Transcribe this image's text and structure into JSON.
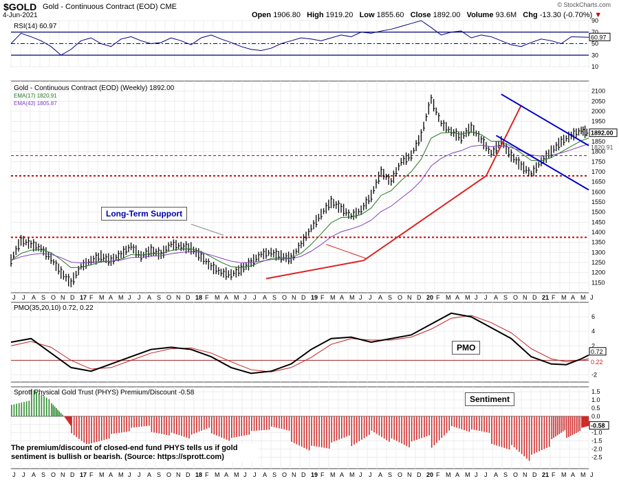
{
  "header": {
    "symbol": "$GOLD",
    "name": "Gold - Continuous Contract (EOD)",
    "exchange": "CME",
    "date": "4-Jun-2021",
    "credit": "© StockCharts.com",
    "open_label": "Open",
    "open": "1906.80",
    "high_label": "High",
    "high": "1919.20",
    "low_label": "Low",
    "low": "1855.60",
    "close_label": "Close",
    "close": "1892.00",
    "volume_label": "Volume",
    "volume": "93.6M",
    "chg_label": "Chg",
    "chg": "-13.30 (-0.70%)",
    "chg_arrow": "▼"
  },
  "colors": {
    "accent_red": "#cc0000",
    "blue": "#0000cc",
    "green": "#227722",
    "purple": "#8040c0",
    "rsi": "#000080"
  },
  "chart_data": [
    {
      "type": "line",
      "title": "RSI(14) 60.97",
      "yticks": [
        "90",
        "70",
        "50",
        "30",
        "10"
      ],
      "levels": [
        70,
        30
      ],
      "current": "60.97",
      "ylim": [
        10,
        90
      ],
      "x": [
        0,
        4,
        8,
        12,
        16,
        20,
        24,
        28,
        32,
        36,
        40,
        44,
        48,
        52,
        56,
        60,
        64,
        68,
        72,
        76,
        80,
        84,
        88,
        92,
        96,
        100,
        104,
        108,
        112,
        116,
        120,
        124,
        128,
        132,
        136,
        140,
        144,
        148,
        152,
        156,
        160,
        164,
        168,
        172,
        176,
        180,
        184,
        188,
        192,
        196,
        200,
        204,
        208,
        212,
        216,
        220,
        224,
        231
      ],
      "values": [
        50,
        68,
        62,
        55,
        45,
        30,
        40,
        55,
        60,
        50,
        45,
        58,
        62,
        55,
        50,
        52,
        60,
        55,
        48,
        60,
        65,
        58,
        52,
        45,
        40,
        38,
        42,
        50,
        55,
        60,
        58,
        55,
        60,
        65,
        62,
        70,
        68,
        72,
        75,
        80,
        85,
        90,
        78,
        65,
        70,
        72,
        60,
        65,
        62,
        55,
        48,
        45,
        52,
        58,
        55,
        50,
        62,
        61
      ]
    },
    {
      "type": "line",
      "title": "Gold - Continuous Contract (EOD) (Weekly) 1892.00",
      "ylim": [
        1100,
        2150
      ],
      "yticks": [
        "2100",
        "2050",
        "2000",
        "1950",
        "1900",
        "1850",
        "1800",
        "1750",
        "1700",
        "1650",
        "1600",
        "1550",
        "1500",
        "1450",
        "1400",
        "1350",
        "1300",
        "1250",
        "1200",
        "1150"
      ],
      "x_month_labels": [
        "J",
        "J",
        "A",
        "S",
        "O",
        "N",
        "D",
        "17",
        "F",
        "M",
        "A",
        "M",
        "J",
        "J",
        "A",
        "S",
        "O",
        "N",
        "D",
        "18",
        "F",
        "M",
        "A",
        "M",
        "J",
        "J",
        "A",
        "S",
        "O",
        "N",
        "D",
        "19",
        "F",
        "M",
        "A",
        "M",
        "J",
        "J",
        "A",
        "S",
        "O",
        "N",
        "D",
        "20",
        "F",
        "M",
        "A",
        "M",
        "J",
        "J",
        "A",
        "S",
        "O",
        "N",
        "D",
        "21",
        "F",
        "M",
        "A",
        "M",
        "J"
      ],
      "x": [
        0,
        4,
        8,
        12,
        16,
        20,
        24,
        28,
        32,
        36,
        40,
        44,
        48,
        52,
        56,
        60,
        64,
        68,
        72,
        76,
        80,
        84,
        88,
        92,
        96,
        100,
        104,
        108,
        112,
        116,
        120,
        124,
        128,
        132,
        136,
        140,
        144,
        148,
        152,
        156,
        160,
        164,
        168,
        172,
        176,
        180,
        184,
        188,
        192,
        196,
        200,
        204,
        208,
        212,
        216,
        220,
        224,
        228,
        231
      ],
      "values": [
        1260,
        1360,
        1340,
        1320,
        1270,
        1200,
        1150,
        1230,
        1260,
        1280,
        1260,
        1290,
        1330,
        1280,
        1310,
        1290,
        1340,
        1330,
        1320,
        1280,
        1230,
        1200,
        1190,
        1215,
        1250,
        1290,
        1300,
        1280,
        1270,
        1340,
        1420,
        1490,
        1550,
        1520,
        1480,
        1510,
        1580,
        1700,
        1650,
        1750,
        1780,
        1880,
        2060,
        1940,
        1900,
        1870,
        1920,
        1860,
        1790,
        1850,
        1780,
        1730,
        1690,
        1750,
        1800,
        1850,
        1880,
        1905,
        1892
      ],
      "series": [
        {
          "name": "EMA(17) 1820.91",
          "color": "#227722",
          "label": "1820.91"
        },
        {
          "name": "EMA(43) 1805.87",
          "color": "#8040c0",
          "label": "1805.87"
        }
      ],
      "last_price_label": "1892.00",
      "support_levels": [
        1780,
        1680,
        1375
      ],
      "annotations": [
        "Long-Term Support"
      ]
    },
    {
      "type": "line",
      "title": "PMO(35,20,10) 0.72, 0.22",
      "ylim": [
        -3,
        8
      ],
      "yticks": [
        "6",
        "4",
        "2",
        "-2"
      ],
      "series": [
        {
          "name": "PMO",
          "color": "#000000",
          "label": "0.72",
          "x": [
            0,
            8,
            16,
            24,
            32,
            40,
            48,
            56,
            64,
            72,
            80,
            88,
            96,
            104,
            112,
            120,
            128,
            136,
            144,
            152,
            160,
            168,
            176,
            184,
            192,
            200,
            208,
            216,
            222,
            228,
            231
          ],
          "values": [
            2.5,
            3.0,
            1.0,
            -1.0,
            -1.5,
            -0.5,
            0.5,
            1.5,
            1.8,
            1.5,
            0.5,
            -1.0,
            -1.8,
            -1.5,
            -0.5,
            1.5,
            3.0,
            3.2,
            2.5,
            3.0,
            3.5,
            5.0,
            6.5,
            6.0,
            4.5,
            3.0,
            0.5,
            -0.5,
            -0.6,
            0.2,
            0.72
          ]
        },
        {
          "name": "Signal",
          "color": "#c02020",
          "label": "0.22",
          "x": [
            0,
            8,
            16,
            24,
            32,
            40,
            48,
            56,
            64,
            72,
            80,
            88,
            96,
            104,
            112,
            120,
            128,
            136,
            144,
            152,
            160,
            168,
            176,
            184,
            192,
            200,
            208,
            216,
            222,
            228,
            231
          ],
          "values": [
            2.0,
            2.6,
            1.8,
            0.0,
            -1.2,
            -1.0,
            0.0,
            1.0,
            1.6,
            1.7,
            1.0,
            -0.2,
            -1.3,
            -1.6,
            -1.0,
            0.4,
            2.2,
            3.0,
            2.8,
            2.8,
            3.2,
            4.3,
            5.8,
            6.2,
            5.2,
            3.8,
            1.6,
            0.2,
            -0.2,
            0.0,
            0.22
          ]
        }
      ],
      "annotations": [
        "PMO"
      ]
    },
    {
      "type": "bar",
      "title": "Sprott Physical Gold Trust (PHYS) Premium/Discount -0.58",
      "ylim": [
        -3.2,
        1.8
      ],
      "yticks": [
        "1.5",
        "1.0",
        "0.5",
        "0.0",
        "-0.5",
        "-1.0",
        "-1.5",
        "-2.0",
        "-2.5"
      ],
      "current": "-0.58",
      "x": [
        0,
        8,
        16,
        21,
        24,
        32,
        40,
        48,
        56,
        64,
        72,
        80,
        88,
        96,
        104,
        112,
        120,
        128,
        136,
        144,
        152,
        160,
        168,
        176,
        184,
        192,
        200,
        208,
        216,
        222,
        228,
        231
      ],
      "values": [
        1.0,
        1.4,
        0.8,
        0.0,
        -0.8,
        -1.5,
        -1.2,
        -1.0,
        -0.8,
        -1.0,
        -1.4,
        -0.8,
        -1.2,
        -1.0,
        -0.9,
        -1.3,
        -1.8,
        -2.0,
        -1.4,
        -0.8,
        -1.5,
        -2.2,
        -1.6,
        -0.6,
        -1.0,
        -1.3,
        -1.6,
        -2.6,
        -2.0,
        -1.1,
        -0.7,
        -0.58
      ],
      "annotations": [
        "Sentiment"
      ]
    }
  ],
  "notes": {
    "sentiment_note": "The premium/discount of closed-end fund PHYS tells us if gold sentiment is bullish or bearish. (Source: https://sprott.com)",
    "pmo_box": "PMO",
    "sentiment_box": "Sentiment",
    "support_box": "Long-Term Support"
  }
}
